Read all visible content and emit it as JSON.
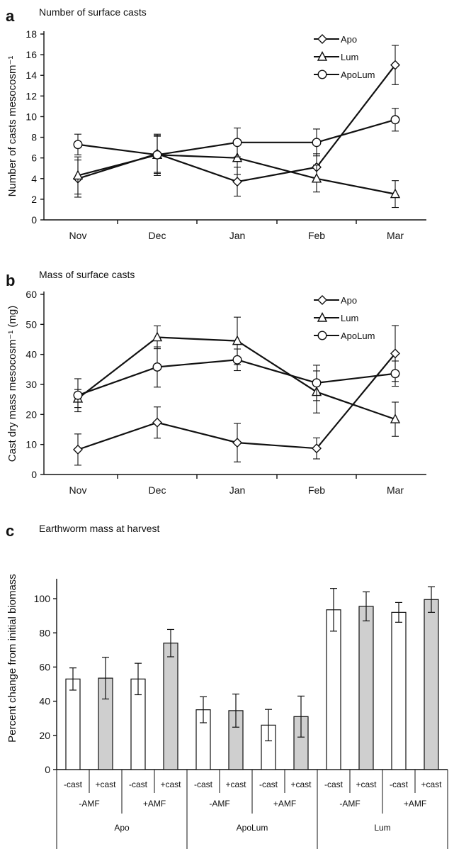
{
  "chart_data": [
    {
      "panel": "a",
      "type": "line",
      "title": "Number of surface casts",
      "ylabel": "Number of casts mesocosm⁻¹",
      "xlabel": "",
      "categories": [
        "Nov",
        "Dec",
        "Jan",
        "Feb",
        "Mar"
      ],
      "ylim": [
        0,
        18
      ],
      "yticks": [
        0,
        2,
        4,
        6,
        8,
        10,
        12,
        14,
        16,
        18
      ],
      "legend_position": "top-right",
      "series": [
        {
          "name": "Apo",
          "marker": "diamond",
          "values": [
            4.0,
            6.4,
            3.7,
            5.1,
            15.0
          ],
          "errors": [
            1.8,
            1.8,
            1.4,
            1.3,
            1.9
          ]
        },
        {
          "name": "Lum",
          "marker": "triangle",
          "values": [
            4.3,
            6.3,
            6.0,
            4.0,
            2.5
          ],
          "errors": [
            1.8,
            2.0,
            1.6,
            1.3,
            1.3
          ]
        },
        {
          "name": "ApoLum",
          "marker": "circle",
          "values": [
            7.3,
            6.3,
            7.5,
            7.5,
            9.7
          ],
          "errors": [
            1.0,
            1.8,
            1.4,
            1.3,
            1.1
          ]
        }
      ]
    },
    {
      "panel": "b",
      "type": "line",
      "title": "Mass of surface casts",
      "ylabel": "Cast dry mass mesocosm⁻¹ (mg)",
      "xlabel": "",
      "categories": [
        "Nov",
        "Dec",
        "Jan",
        "Feb",
        "Mar"
      ],
      "ylim": [
        0,
        60
      ],
      "yticks": [
        0,
        10,
        20,
        30,
        40,
        50,
        60
      ],
      "legend_position": "top-right",
      "series": [
        {
          "name": "Apo",
          "marker": "diamond",
          "values": [
            8.3,
            17.3,
            10.6,
            8.7,
            40.3
          ],
          "errors": [
            5.2,
            5.2,
            6.4,
            3.5,
            9.3
          ]
        },
        {
          "name": "Lum",
          "marker": "triangle",
          "values": [
            25.3,
            45.7,
            44.5,
            27.5,
            18.4
          ],
          "errors": [
            3.0,
            3.8,
            7.9,
            7.0,
            5.7
          ]
        },
        {
          "name": "ApoLum",
          "marker": "circle",
          "values": [
            26.4,
            35.8,
            38.2,
            30.5,
            33.6
          ],
          "errors": [
            5.5,
            6.7,
            3.6,
            5.9,
            4.2
          ]
        }
      ]
    },
    {
      "panel": "c",
      "type": "bar",
      "title": "Earthworm mass at harvest",
      "ylabel": "Percent change from initial biomass",
      "xlabel": "",
      "ylim": [
        0,
        110
      ],
      "yticks": [
        0,
        20,
        40,
        60,
        80,
        100
      ],
      "level1_labels": [
        "-cast",
        "+cast",
        "-cast",
        "+cast",
        "-cast",
        "+cast",
        "-cast",
        "+cast",
        "-cast",
        "+cast",
        "-cast",
        "+cast"
      ],
      "level2_labels": [
        "-AMF",
        "+AMF",
        "-AMF",
        "+AMF",
        "-AMF",
        "+AMF"
      ],
      "level3_labels": [
        "Apo",
        "ApoLum",
        "Lum"
      ],
      "values": [
        53,
        53.5,
        53,
        74,
        35,
        34.5,
        26,
        31,
        93.5,
        95.5,
        92,
        99.5
      ],
      "errors": [
        6.5,
        12.2,
        9.2,
        8.0,
        7.6,
        9.7,
        9.2,
        12.0,
        12.5,
        8.5,
        5.8,
        7.5
      ],
      "fills": [
        "white",
        "gray",
        "white",
        "gray",
        "white",
        "gray",
        "white",
        "gray",
        "white",
        "gray",
        "white",
        "gray"
      ]
    }
  ],
  "colors": {
    "line": "#111111",
    "open_fill": "#ffffff",
    "shaded_fill": "#cfcfcf"
  }
}
